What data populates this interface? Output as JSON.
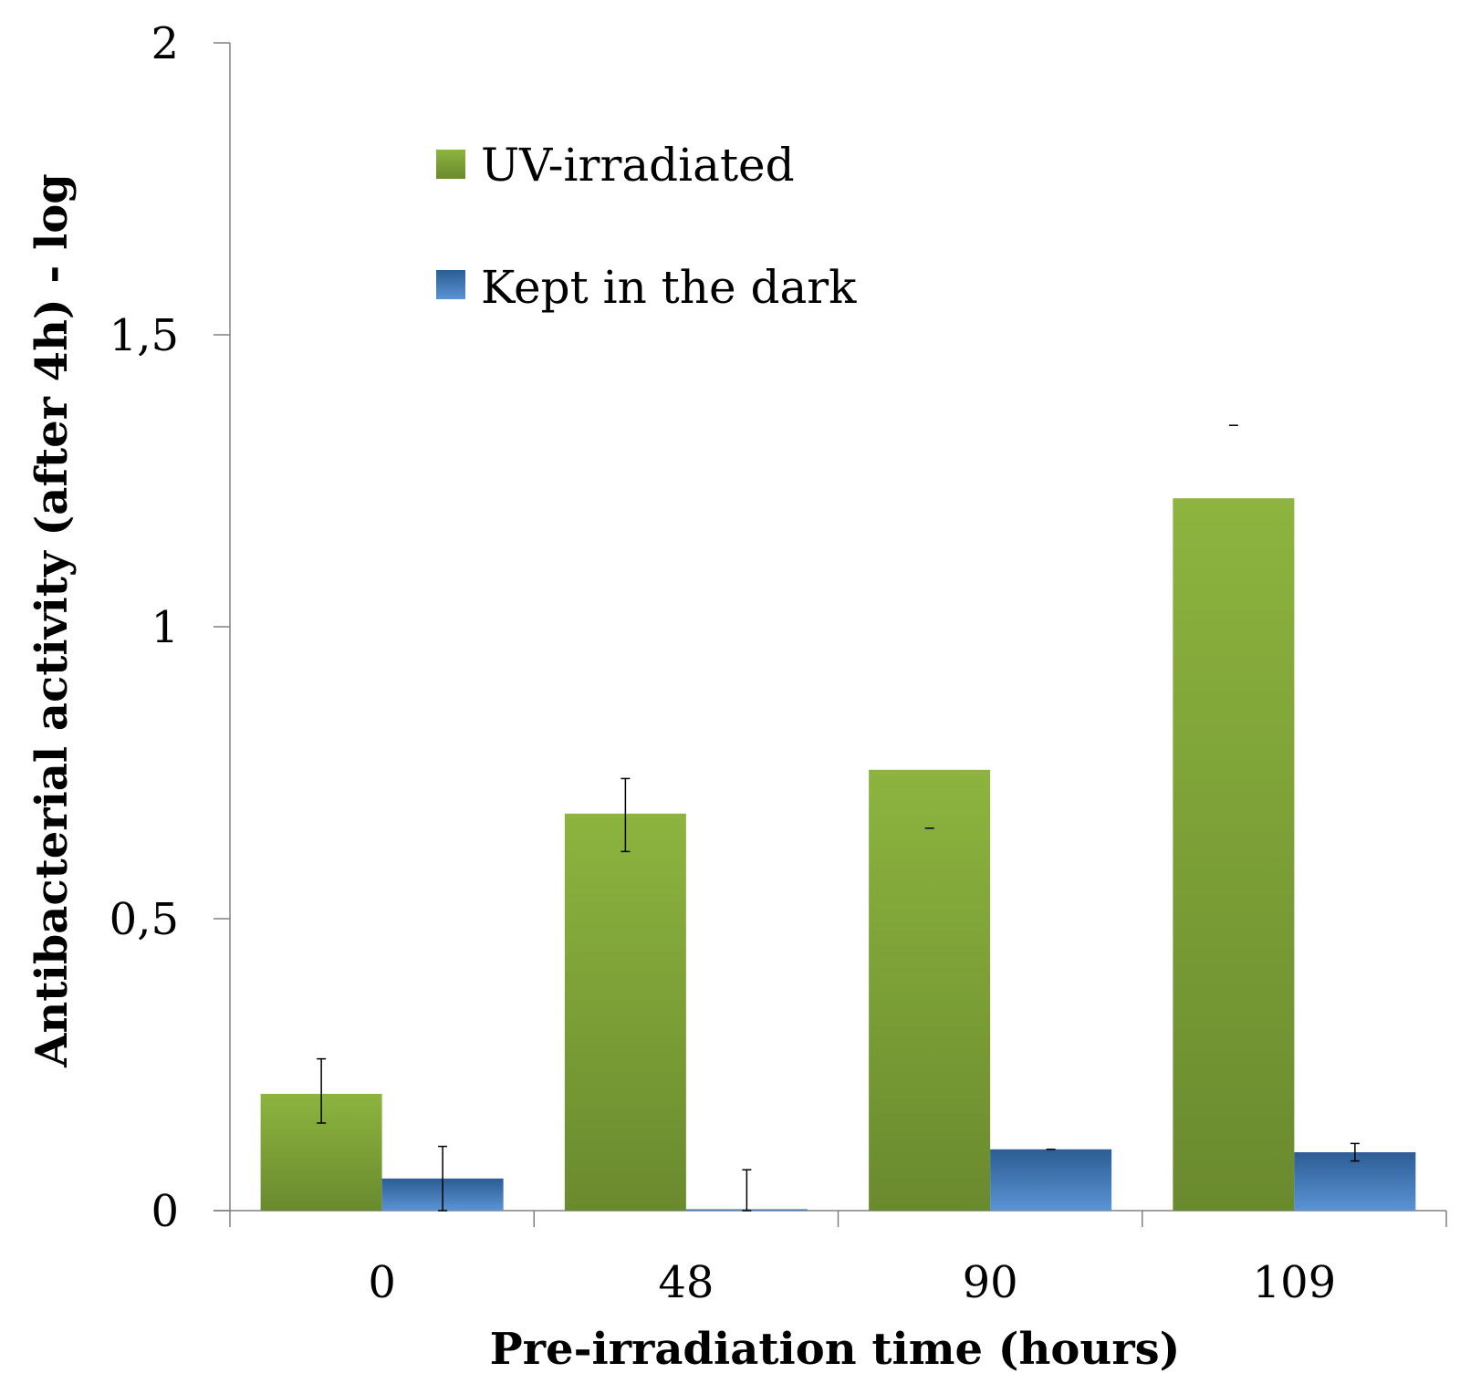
{
  "chart_data": {
    "type": "bar",
    "title": "",
    "xlabel": "Pre-irradiation time (hours)",
    "ylabel": "Antibacterial activity (after 4h) - log",
    "categories": [
      "0",
      "48",
      "90",
      "109"
    ],
    "ylim": [
      0,
      2
    ],
    "yticks": [
      0,
      0.5,
      1,
      1.5,
      2
    ],
    "ytick_labels": [
      "0",
      "0,5",
      "1",
      "1,5",
      "2"
    ],
    "grid": false,
    "legend_position": "top-left",
    "series": [
      {
        "name": "UV-irradiated",
        "color_top": "#8db43f",
        "color_bottom": "#6a8a2e",
        "values": [
          0.2,
          0.68,
          0.755,
          1.22
        ],
        "error_low": [
          0.15,
          0.615,
          0.655,
          1.345
        ],
        "error_high": [
          0.26,
          0.74,
          0.655,
          1.345
        ]
      },
      {
        "name": "Kept in the dark",
        "color_top": "#2c5d94",
        "color_bottom": "#5b93d4",
        "values": [
          0.055,
          0.0,
          0.105,
          0.1
        ],
        "error_low": [
          0.0,
          0.0,
          0.105,
          0.085
        ],
        "error_high": [
          0.11,
          0.07,
          0.105,
          0.115
        ]
      }
    ]
  }
}
